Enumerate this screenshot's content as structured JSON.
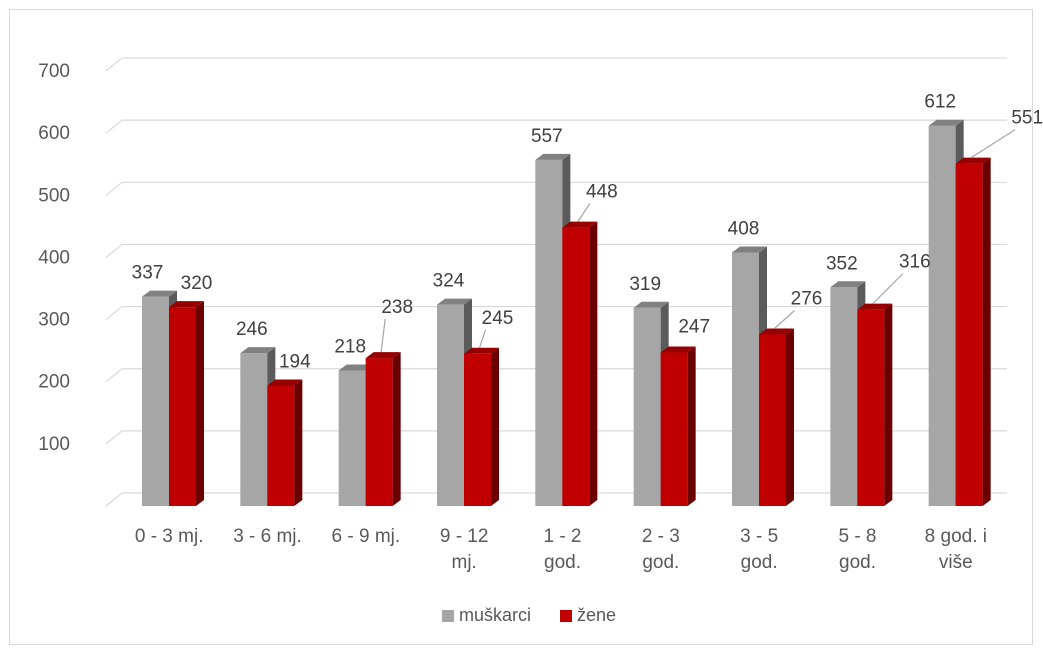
{
  "chart_data": {
    "type": "bar",
    "title": "",
    "xlabel": "",
    "ylabel": "",
    "ylim": [
      0,
      700
    ],
    "yticks": [
      100,
      200,
      300,
      400,
      500,
      600,
      700
    ],
    "grid": true,
    "legend_position": "bottom",
    "categories": [
      [
        "0 - 3 mj."
      ],
      [
        "3 - 6 mj."
      ],
      [
        "6 - 9 mj."
      ],
      [
        "9 - 12",
        "mj."
      ],
      [
        "1 - 2",
        "god."
      ],
      [
        "2 - 3",
        "god."
      ],
      [
        "3 - 5",
        "god."
      ],
      [
        "5 - 8",
        "god."
      ],
      [
        "8 god. i",
        "više"
      ]
    ],
    "series": [
      {
        "name": "muškarci",
        "color": "#a6a6a6",
        "values": [
          337,
          246,
          218,
          324,
          557,
          319,
          408,
          352,
          612
        ]
      },
      {
        "name": "žene",
        "color": "#c00000",
        "values": [
          320,
          194,
          238,
          245,
          448,
          247,
          276,
          316,
          551
        ]
      }
    ]
  }
}
